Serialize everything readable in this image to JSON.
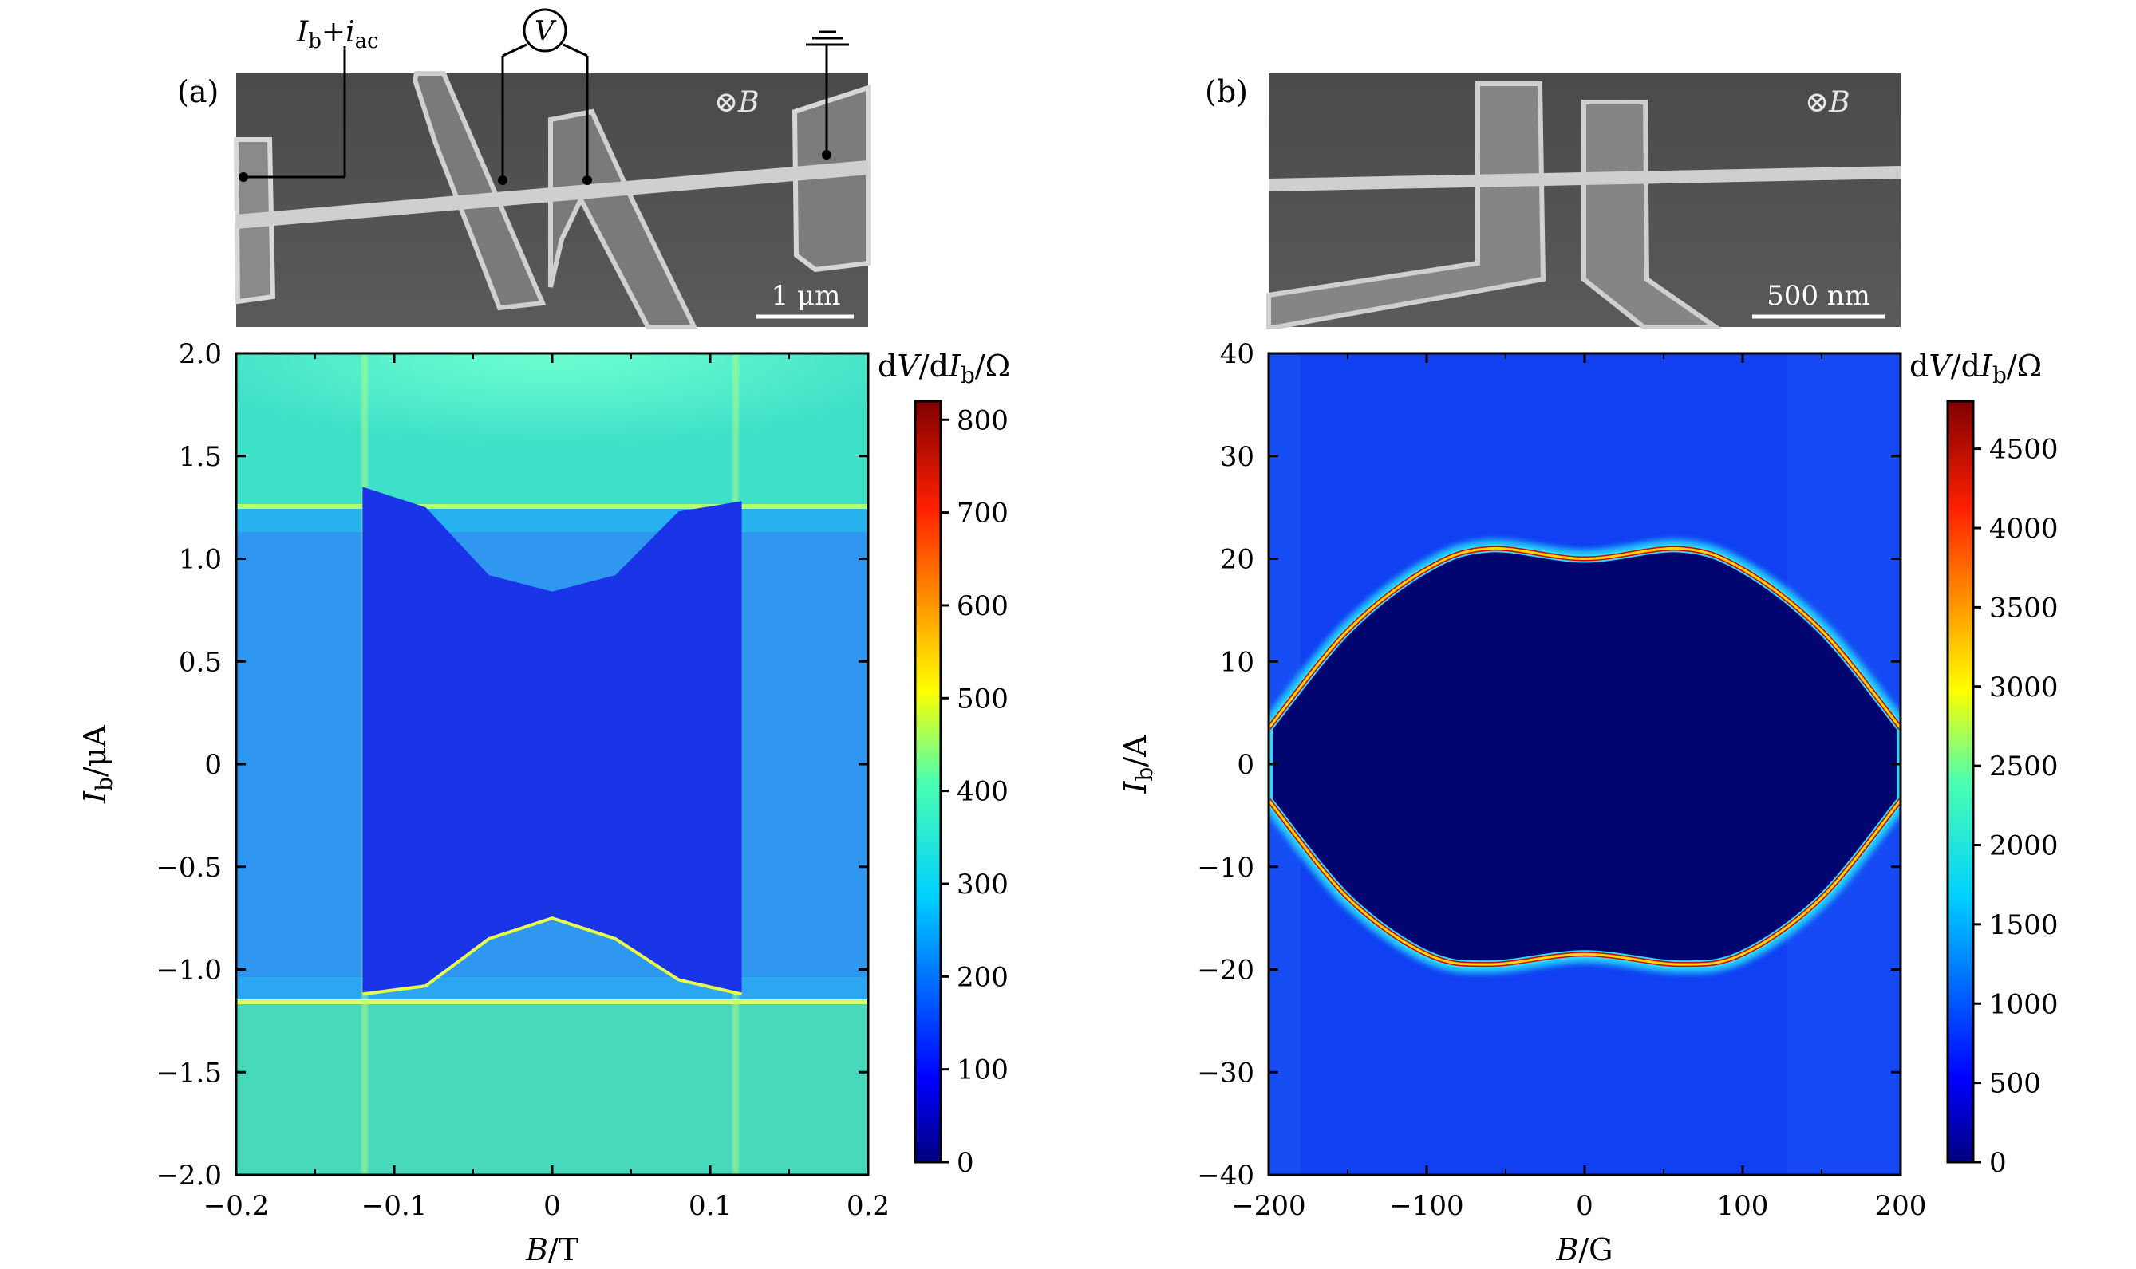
{
  "panel_a": {
    "label": "(a)",
    "sem": {
      "bias_label": "I",
      "bias_sub": "b",
      "bias_plus": "+",
      "ac_label": "i",
      "ac_sub": "ac",
      "volt_label": "V",
      "field_label": "⊗",
      "field_var": "B",
      "scalebar_label": "1 μm"
    },
    "colorbar": {
      "title": "dV/dIb/Ω",
      "ticks": [
        "0",
        "100",
        "200",
        "300",
        "400",
        "500",
        "600",
        "700",
        "800"
      ]
    },
    "axes": {
      "xlabel": "B/T",
      "ylabel": "Ib/μA",
      "xticks": [
        "−0.2",
        "−0.1",
        "0",
        "0.1",
        "0.2"
      ],
      "yticks": [
        "−2.0",
        "−1.5",
        "−1.0",
        "−0.5",
        "0",
        "0.5",
        "1.0",
        "1.5",
        "2.0"
      ]
    }
  },
  "panel_b": {
    "label": "(b)",
    "sem": {
      "field_label": "⊗",
      "field_var": "B",
      "scalebar_label": "500 nm"
    },
    "colorbar": {
      "title": "dV/dIb/Ω",
      "ticks": [
        "0",
        "500",
        "1000",
        "1500",
        "2000",
        "2500",
        "3000",
        "3500",
        "4000",
        "4500"
      ]
    },
    "axes": {
      "xlabel": "B/G",
      "ylabel": "Ib/A",
      "xticks": [
        "−200",
        "−100",
        "0",
        "100",
        "200"
      ],
      "yticks": [
        "−40",
        "−30",
        "−20",
        "−10",
        "0",
        "10",
        "20",
        "30",
        "40"
      ]
    }
  },
  "chart_data": [
    {
      "type": "heatmap",
      "xlabel": "B/T",
      "ylabel": "Ib/μA",
      "xlim": [
        -0.2,
        0.2
      ],
      "ylim": [
        -2.0,
        2.0
      ],
      "colorbar_label": "dV/dIb/Ω",
      "colorbar_range": [
        0,
        820
      ],
      "colormap": "jet",
      "regions": {
        "superconducting_core_value": 80,
        "resistive_band_value": 200,
        "normal_state_value": 330,
        "switching_edge_value": 450,
        "upper_boundary_B": [
          -0.12,
          -0.08,
          -0.04,
          0,
          0.04,
          0.08,
          0.12
        ],
        "upper_boundary_I": [
          1.35,
          1.25,
          0.92,
          0.84,
          0.92,
          1.23,
          1.28
        ],
        "lower_boundary_B": [
          -0.12,
          -0.08,
          -0.04,
          0,
          0.04,
          0.08,
          0.12
        ],
        "lower_boundary_I": [
          -1.12,
          -1.08,
          -0.85,
          -0.75,
          -0.85,
          -1.05,
          -1.12
        ],
        "band_I_upper": 1.25,
        "band_I_lower": -1.15,
        "critical_field_T": 0.125
      },
      "grid": false
    },
    {
      "type": "heatmap",
      "xlabel": "B/G",
      "ylabel": "Ib/A",
      "xlim": [
        -200,
        200
      ],
      "ylim": [
        -40,
        40
      ],
      "colorbar_label": "dV/dIb/Ω",
      "colorbar_range": [
        0,
        4800
      ],
      "colormap": "jet",
      "regions": {
        "inner_value": 50,
        "outer_value": 850,
        "boundary_peak_value": 4600,
        "boundary_B": [
          -200,
          -150,
          -100,
          -60,
          0,
          60,
          100,
          150,
          200
        ],
        "boundary_upper_I": [
          3.5,
          13,
          19,
          21,
          20,
          21,
          19,
          13,
          3.5
        ],
        "boundary_lower_I": [
          -3.5,
          -13,
          -18.5,
          -19.5,
          -18.5,
          -19.5,
          -18.5,
          -13,
          -3.5
        ]
      },
      "grid": false
    }
  ]
}
